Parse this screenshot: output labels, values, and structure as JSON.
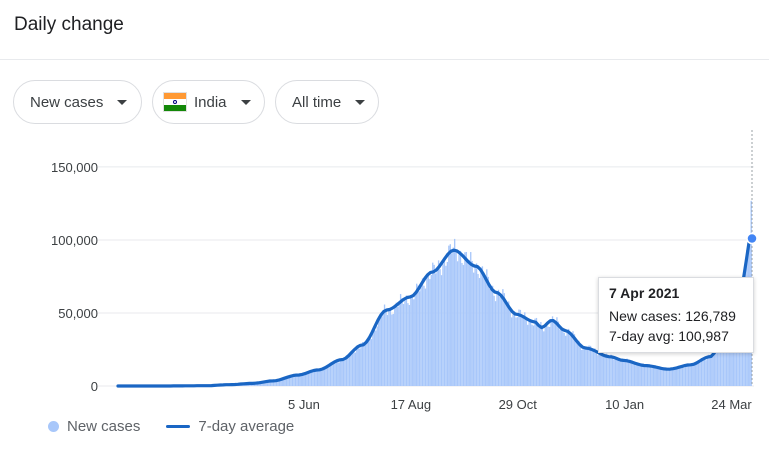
{
  "header": {
    "title": "Daily change"
  },
  "filters": {
    "metric": "New cases",
    "country": "India",
    "range": "All time"
  },
  "colors": {
    "bars": "#a8c7fa",
    "line": "#1a66c4",
    "flag_saffron": "#ff9933",
    "flag_green": "#138808"
  },
  "legend": {
    "bars_label": "New cases",
    "line_label": "7-day average"
  },
  "tooltip": {
    "date": "7 Apr 2021",
    "new_cases": "New cases: 126,789",
    "avg": "7-day avg: 100,987"
  },
  "chart_data": {
    "type": "bar",
    "x_axis": "date",
    "x_start": "2020-01-30",
    "x_end": "2021-04-07",
    "xticks": [
      {
        "date": "2020-06-05",
        "label": "5 Jun"
      },
      {
        "date": "2020-08-17",
        "label": "17 Aug"
      },
      {
        "date": "2020-10-29",
        "label": "29 Oct"
      },
      {
        "date": "2021-01-10",
        "label": "10 Jan"
      },
      {
        "date": "2021-03-24",
        "label": "24 Mar"
      }
    ],
    "yticks": [
      {
        "value": 0,
        "label": "0"
      },
      {
        "value": 50000,
        "label": "50,000"
      },
      {
        "value": 100000,
        "label": "100,000"
      },
      {
        "value": 150000,
        "label": "150,000"
      }
    ],
    "ylim": [
      0,
      165000
    ],
    "series": [
      {
        "name": "7-day average",
        "type": "line",
        "points": [
          [
            "2020-01-30",
            0
          ],
          [
            "2020-03-01",
            20
          ],
          [
            "2020-03-31",
            200
          ],
          [
            "2020-04-15",
            900
          ],
          [
            "2020-05-01",
            1800
          ],
          [
            "2020-05-15",
            3500
          ],
          [
            "2020-06-01",
            7500
          ],
          [
            "2020-06-15",
            11000
          ],
          [
            "2020-07-01",
            18000
          ],
          [
            "2020-07-15",
            28000
          ],
          [
            "2020-08-01",
            52000
          ],
          [
            "2020-08-17",
            61000
          ],
          [
            "2020-09-01",
            78000
          ],
          [
            "2020-09-16",
            93000
          ],
          [
            "2020-10-01",
            82000
          ],
          [
            "2020-10-15",
            64000
          ],
          [
            "2020-10-29",
            49000
          ],
          [
            "2020-11-10",
            44000
          ],
          [
            "2020-11-15",
            40000
          ],
          [
            "2020-11-22",
            45000
          ],
          [
            "2020-12-01",
            38000
          ],
          [
            "2020-12-15",
            26000
          ],
          [
            "2021-01-01",
            20000
          ],
          [
            "2021-01-10",
            17500
          ],
          [
            "2021-01-25",
            14000
          ],
          [
            "2021-02-10",
            11500
          ],
          [
            "2021-02-25",
            14500
          ],
          [
            "2021-03-10",
            20000
          ],
          [
            "2021-03-24",
            40000
          ],
          [
            "2021-04-01",
            70000
          ],
          [
            "2021-04-07",
            100987
          ]
        ]
      }
    ],
    "bars_name": "New cases",
    "bars_peak_note_date": "2021-04-07",
    "bars_peak_value": 126789
  }
}
